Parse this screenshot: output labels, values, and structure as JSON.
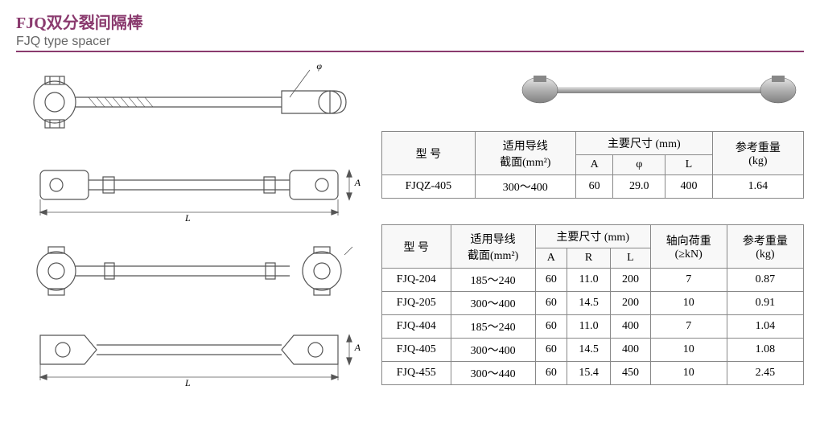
{
  "colors": {
    "accent": "#8a3a6e",
    "text_gray": "#666666",
    "line_gray": "#888888",
    "stroke": "#555555",
    "bg": "#ffffff"
  },
  "title": {
    "cn": "FJQ双分裂间隔棒",
    "en": "FJQ type spacer"
  },
  "drawings": {
    "dim_L": "L",
    "dim_A": "A",
    "dim_phi": "φ"
  },
  "table1": {
    "headers": {
      "model": "型 号",
      "section": "适用导线",
      "section_sub": "截面(mm²)",
      "main_dim": "主要尺寸 (mm)",
      "A": "A",
      "phi": "φ",
      "L": "L",
      "weight": "参考重量",
      "weight_sub": "(kg)"
    },
    "rows": [
      {
        "model": "FJQZ-405",
        "section": "300～400",
        "A": "60",
        "phi": "29.0",
        "L": "400",
        "weight": "1.64"
      }
    ]
  },
  "table2": {
    "headers": {
      "model": "型 号",
      "section": "适用导线",
      "section_sub": "截面(mm²)",
      "main_dim": "主要尺寸 (mm)",
      "A": "A",
      "R": "R",
      "L": "L",
      "axial": "轴向荷重",
      "axial_sub": "(≥kN)",
      "weight": "参考重量",
      "weight_sub": "(kg)"
    },
    "rows": [
      {
        "model": "FJQ-204",
        "section": "185～240",
        "A": "60",
        "R": "11.0",
        "L": "200",
        "axial": "7",
        "weight": "0.87"
      },
      {
        "model": "FJQ-205",
        "section": "300～400",
        "A": "60",
        "R": "14.5",
        "L": "200",
        "axial": "10",
        "weight": "0.91"
      },
      {
        "model": "FJQ-404",
        "section": "185～240",
        "A": "60",
        "R": "11.0",
        "L": "400",
        "axial": "7",
        "weight": "1.04"
      },
      {
        "model": "FJQ-405",
        "section": "300～400",
        "A": "60",
        "R": "14.5",
        "L": "400",
        "axial": "10",
        "weight": "1.08"
      },
      {
        "model": "FJQ-455",
        "section": "300～440",
        "A": "60",
        "R": "15.4",
        "L": "450",
        "axial": "10",
        "weight": "2.45"
      }
    ]
  }
}
